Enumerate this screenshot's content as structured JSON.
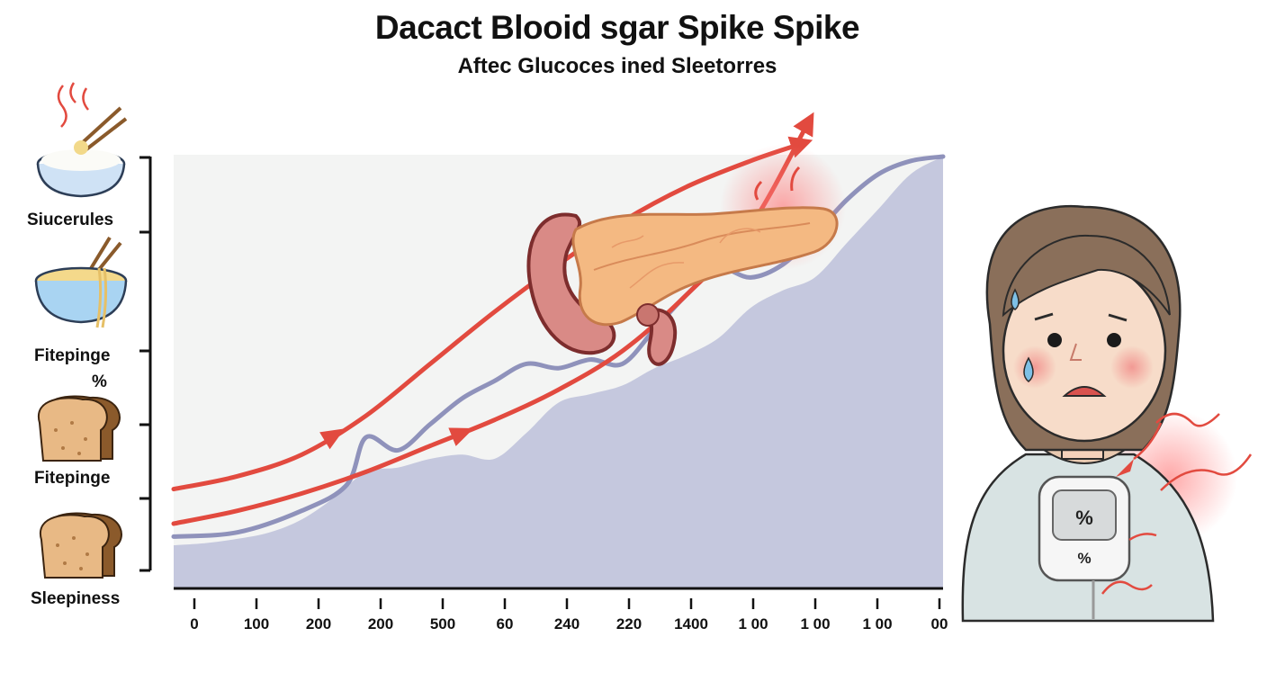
{
  "header": {
    "title": "Dacact Blooid sgar Spike Spike",
    "subtitle": "Aftec Glucoces ined Sleetorres"
  },
  "foods": [
    {
      "label": "Siucerules",
      "icon": "rice-bowl-icon"
    },
    {
      "label": "Fitepinge",
      "icon": "noodle-bowl-icon"
    },
    {
      "label": "%",
      "icon": ""
    },
    {
      "label": "Fitepinge",
      "icon": "bread-slice-icon"
    },
    {
      "label": "Sleepiness",
      "icon": "bread-slice-icon"
    }
  ],
  "meter": {
    "top_text": "%",
    "bottom_text": "%"
  },
  "colors": {
    "area": "#c5c8de",
    "glucose_line": "#8f92bb",
    "arrow": "#e24a3f",
    "plot_bg": "#f3f4f3"
  },
  "chart_data": {
    "type": "area",
    "title": "Dacact Blooid sgar Spike Spike",
    "subtitle": "Aftec Glucoces ined Sleetorres",
    "xlabel": "",
    "ylabel": "",
    "x_tick_labels": [
      "0",
      "100",
      "200",
      "200",
      "500",
      "60",
      "240",
      "220",
      "1400",
      "1 00",
      "1 00",
      "1 00",
      "00"
    ],
    "ylim": [
      0,
      100
    ],
    "y_tick_count": 7,
    "series": [
      {
        "kind": "area",
        "x": [
          0,
          0.5,
          1,
          1.5,
          2,
          2.5,
          3,
          3.5,
          4,
          4.5,
          5,
          5.5,
          6,
          6.5,
          7,
          7.5,
          8,
          8.5,
          9,
          9.5,
          10,
          10.5,
          11,
          11.5,
          12
        ],
        "values": [
          10,
          10.5,
          11.5,
          13,
          16,
          21,
          27,
          28,
          30,
          31,
          30,
          36,
          43,
          45,
          47,
          51,
          54,
          58,
          65,
          69,
          72,
          80,
          88,
          96,
          100
        ]
      },
      {
        "kind": "line",
        "x": [
          0,
          1,
          2,
          2.7,
          3,
          3.5,
          4,
          4.5,
          5,
          5.5,
          6,
          6.5,
          7,
          7.5,
          8,
          8.5,
          9,
          9.5,
          10,
          10.5,
          11,
          11.5,
          12
        ],
        "values": [
          12,
          13,
          18,
          24,
          35,
          32,
          38,
          44,
          48,
          52,
          51,
          53,
          52,
          60,
          68,
          74,
          72,
          75,
          82,
          90,
          96,
          99,
          100
        ]
      }
    ],
    "arrows": [
      {
        "x": [
          0,
          1,
          2,
          3,
          4,
          5,
          6,
          7,
          8,
          9,
          9.8
        ],
        "values": [
          23,
          26,
          31,
          40,
          52,
          64,
          75,
          85,
          93,
          99,
          103
        ]
      },
      {
        "x": [
          0,
          1,
          2,
          3,
          4,
          5,
          6,
          7,
          8,
          9,
          9.9
        ],
        "values": [
          15,
          18,
          22,
          27,
          33,
          39,
          46,
          55,
          68,
          84,
          108
        ]
      }
    ],
    "grid": false,
    "legend": "none"
  }
}
